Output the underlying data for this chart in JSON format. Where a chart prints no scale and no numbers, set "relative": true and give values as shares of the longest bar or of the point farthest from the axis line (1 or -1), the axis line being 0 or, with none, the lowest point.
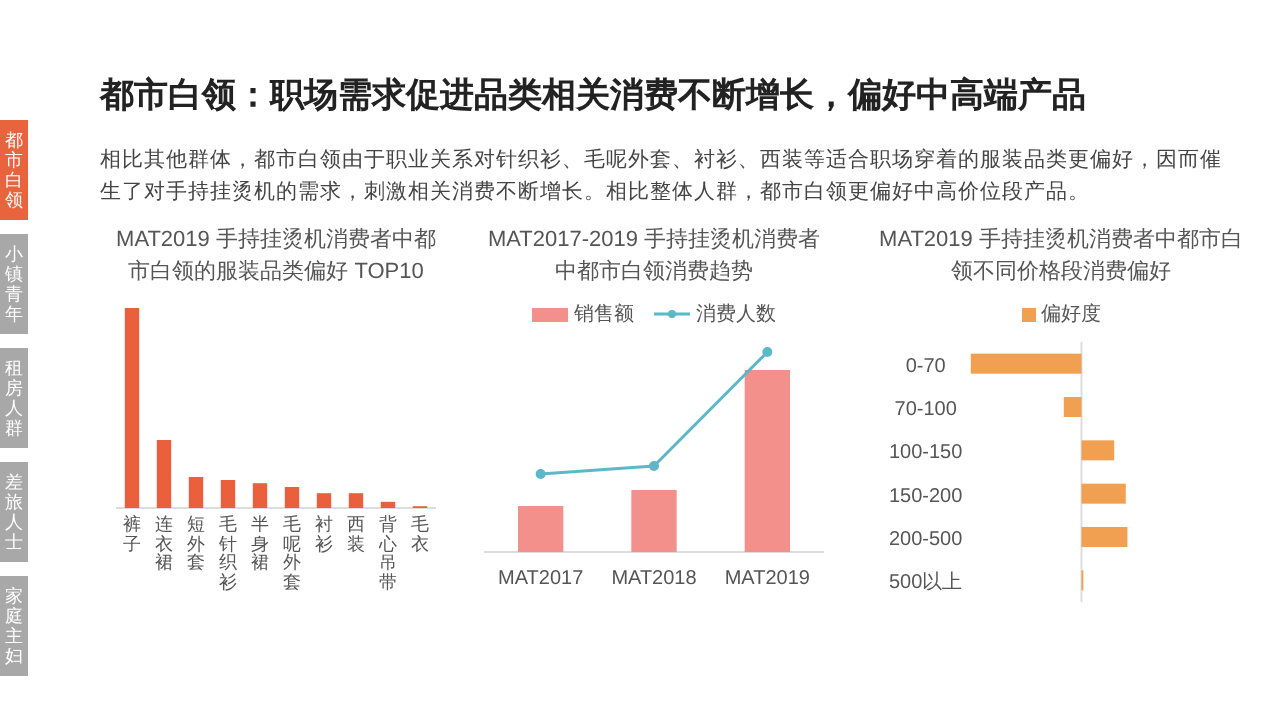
{
  "chart_data": [
    {
      "type": "other",
      "title": "都市白领：职场需求促进品类相关消费不断增长，偏好中高端产品",
      "subtitle": "相比其他群体，都市白领由于职业关系对针织衫、毛呢外套、衬衫、西装等适合职场穿着的服装品类更偏好，因而催生了对手持挂烫机的需求，刺激相关消费不断增长。相比整体人群，都市白领更偏好中高价位段产品。",
      "annotations": [
        "都市白领",
        "小镇青年",
        "租房人群",
        "差旅人士",
        "家庭主妇"
      ]
    },
    {
      "type": "bar",
      "title": "MAT2019 手持挂烫机消费者中都市白领的服装品类偏好 TOP10",
      "relative": true,
      "categories": [
        "裤子",
        "连衣裙",
        "短外套",
        "毛针织衫",
        "半身裙",
        "毛呢外套",
        "衬衫",
        "西装",
        "背心吊带",
        "毛衣"
      ],
      "series": [
        {
          "color": "#e8603c",
          "values": [
            1,
            0.34,
            0.155,
            0.14,
            0.124,
            0.105,
            0.074,
            0.074,
            0.031,
            0.009
          ]
        }
      ]
    },
    {
      "type": "bar",
      "title": "MAT2017-2019 手持挂烫机消费者中都市白领消费趋势",
      "relative": true,
      "legend": "top",
      "marker": "circle",
      "categories": [
        "MAT2017",
        "MAT2018",
        "MAT2019"
      ],
      "series": [
        {
          "name": "销售额",
          "type": "bar",
          "color": "#f4908c",
          "values": [
            0.23,
            0.31,
            0.91
          ]
        },
        {
          "name": "消费人数",
          "type": "line",
          "color": "#5bb8c8",
          "values": [
            0.39,
            0.43,
            1
          ]
        }
      ]
    },
    {
      "type": "bar",
      "orientation": "horizontal",
      "title": "MAT2019 手持挂烫机消费者中都市白领不同价格段消费偏好",
      "relative": true,
      "legend": "top",
      "categories": [
        "0-70",
        "70-100",
        "100-150",
        "150-200",
        "200-500",
        "500以上"
      ],
      "series": [
        {
          "name": "偏好度",
          "color": "#f0a050",
          "values": [
            -1,
            -0.16,
            0.295,
            0.4,
            0.415,
            0.017
          ]
        }
      ]
    }
  ]
}
